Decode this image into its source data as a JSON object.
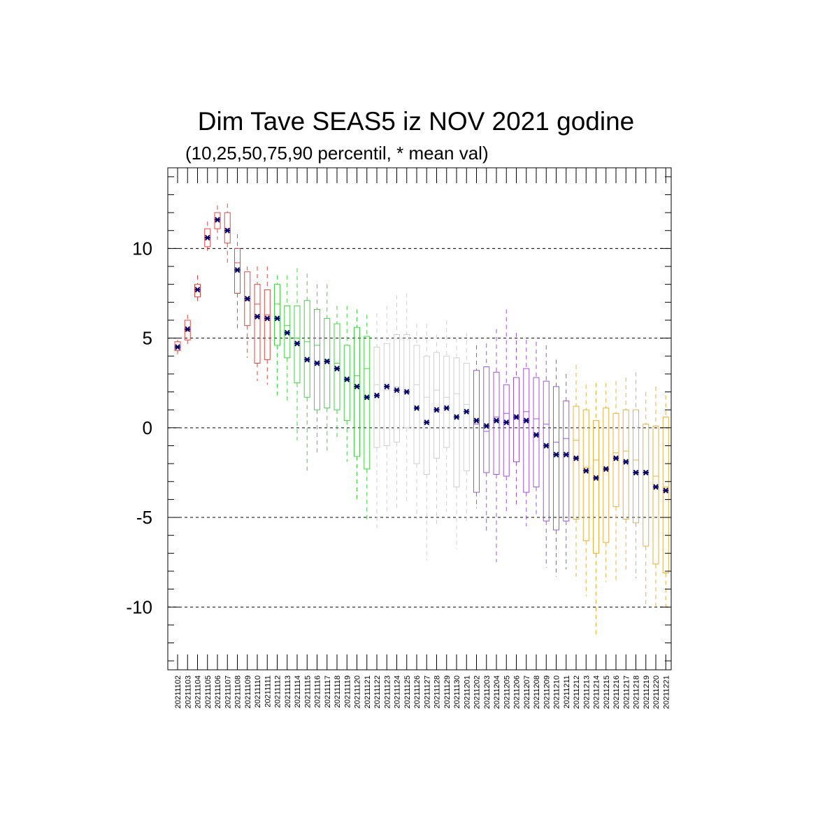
{
  "chart_data": {
    "type": "box",
    "title": "Dim Tave SEAS5 iz NOV 2021 godine",
    "subtitle": "(10,25,50,75,90 percentil, * mean val)",
    "xlabel": "",
    "ylabel": "",
    "ylim": [
      -13.5,
      14.5
    ],
    "yticks": [
      -10,
      -5,
      0,
      5,
      10
    ],
    "ytick_labels": [
      "-10",
      "-5",
      "0",
      "5",
      "10"
    ],
    "grid": "dashed horizontal lines at major ticks",
    "colors": {
      "november_early": "#e8453c",
      "november_mid": "#3fd63f",
      "november_late": "#cfcfcf",
      "december_early": "#a150e8",
      "december_late": "#f0ad3a",
      "mean_marker": "#000066"
    },
    "categories": [
      "20211102",
      "20211103",
      "20211104",
      "20211105",
      "20211106",
      "20211107",
      "20211108",
      "20211109",
      "20211110",
      "20211111",
      "20211112",
      "20211113",
      "20211114",
      "20211115",
      "20211116",
      "20211117",
      "20211118",
      "20211119",
      "20211120",
      "20211121",
      "20211122",
      "20211123",
      "20211124",
      "20211125",
      "20211126",
      "20211127",
      "20211128",
      "20211129",
      "20211130",
      "20211201",
      "20211202",
      "20211203",
      "20211204",
      "20211205",
      "20211206",
      "20211207",
      "20211208",
      "20211209",
      "20211210",
      "20211211",
      "20211212",
      "20211213",
      "20211214",
      "20211215",
      "20211216",
      "20211217",
      "20211218",
      "20211219",
      "20211220",
      "20211221"
    ],
    "boxes": [
      {
        "p10": 4.1,
        "p25": 4.3,
        "p50": 4.5,
        "p75": 4.8,
        "p90": 4.9,
        "mean": 4.5,
        "color": "#e8453c"
      },
      {
        "p10": 4.5,
        "p25": 4.9,
        "p50": 5.4,
        "p75": 6.0,
        "p90": 6.3,
        "mean": 5.5,
        "color": "#e8453c"
      },
      {
        "p10": 7.0,
        "p25": 7.3,
        "p50": 7.7,
        "p75": 8.0,
        "p90": 8.5,
        "mean": 7.7,
        "color": "#e8453c"
      },
      {
        "p10": 9.7,
        "p25": 10.1,
        "p50": 10.6,
        "p75": 11.1,
        "p90": 11.5,
        "mean": 10.6,
        "color": "#e8453c"
      },
      {
        "p10": 10.5,
        "p25": 11.1,
        "p50": 11.6,
        "p75": 12.0,
        "p90": 12.4,
        "mean": 11.6,
        "color": "#e8453c"
      },
      {
        "p10": 9.0,
        "p25": 10.3,
        "p50": 11.1,
        "p75": 12.0,
        "p90": 12.5,
        "mean": 11.0,
        "color": "#e8453c"
      },
      {
        "p10": 5.5,
        "p25": 7.5,
        "p50": 9.2,
        "p75": 10.0,
        "p90": 10.8,
        "mean": 8.8,
        "color": "#e8453c"
      },
      {
        "p10": 3.9,
        "p25": 5.7,
        "p50": 7.1,
        "p75": 8.7,
        "p90": 9.0,
        "mean": 7.2,
        "color": "#e8453c"
      },
      {
        "p10": 2.6,
        "p25": 3.6,
        "p50": 6.9,
        "p75": 8.0,
        "p90": 9.0,
        "mean": 6.2,
        "color": "#e8453c"
      },
      {
        "p10": 2.4,
        "p25": 3.8,
        "p50": 6.3,
        "p75": 7.7,
        "p90": 9.0,
        "mean": 6.1,
        "color": "#e8453c"
      },
      {
        "p10": 1.8,
        "p25": 4.6,
        "p50": 6.9,
        "p75": 8.0,
        "p90": 8.5,
        "mean": 6.1,
        "color": "#3fd63f"
      },
      {
        "p10": 1.5,
        "p25": 3.9,
        "p50": 5.7,
        "p75": 6.8,
        "p90": 8.5,
        "mean": 5.3,
        "color": "#3fd63f"
      },
      {
        "p10": -0.7,
        "p25": 2.5,
        "p50": 5.0,
        "p75": 6.8,
        "p90": 8.9,
        "mean": 4.7,
        "color": "#3fd63f"
      },
      {
        "p10": -2.4,
        "p25": 1.7,
        "p50": 4.8,
        "p75": 7.1,
        "p90": 8.6,
        "mean": 3.8,
        "color": "#3fd63f"
      },
      {
        "p10": -1.5,
        "p25": 1.0,
        "p50": 4.6,
        "p75": 6.6,
        "p90": 8.0,
        "mean": 3.6,
        "color": "#3fd63f"
      },
      {
        "p10": -1.4,
        "p25": 1.1,
        "p50": 3.8,
        "p75": 6.1,
        "p90": 8.0,
        "mean": 3.7,
        "color": "#3fd63f"
      },
      {
        "p10": -0.6,
        "p25": 1.0,
        "p50": 3.6,
        "p75": 5.8,
        "p90": 6.8,
        "mean": 3.3,
        "color": "#3fd63f"
      },
      {
        "p10": -1.9,
        "p25": 0.4,
        "p50": 2.7,
        "p75": 4.6,
        "p90": 6.8,
        "mean": 2.7,
        "color": "#3fd63f"
      },
      {
        "p10": -4.0,
        "p25": -1.6,
        "p50": 2.9,
        "p75": 5.6,
        "p90": 6.6,
        "mean": 2.3,
        "color": "#3fd63f"
      },
      {
        "p10": -5.1,
        "p25": -2.3,
        "p50": 3.3,
        "p75": 5.1,
        "p90": 6.3,
        "mean": 1.7,
        "color": "#3fd63f"
      },
      {
        "p10": -5.6,
        "p25": -1.1,
        "p50": 2.4,
        "p75": 4.5,
        "p90": 6.4,
        "mean": 1.8,
        "color": "#cfcfcf"
      },
      {
        "p10": -4.8,
        "p25": -1.0,
        "p50": 2.1,
        "p75": 4.7,
        "p90": 6.8,
        "mean": 2.3,
        "color": "#cfcfcf"
      },
      {
        "p10": -4.5,
        "p25": -0.8,
        "p50": 2.3,
        "p75": 5.2,
        "p90": 7.4,
        "mean": 2.1,
        "color": "#cfcfcf"
      },
      {
        "p10": -4.2,
        "p25": 0.0,
        "p50": 2.1,
        "p75": 5.2,
        "p90": 7.5,
        "mean": 2.0,
        "color": "#cfcfcf"
      },
      {
        "p10": -5.1,
        "p25": -2.0,
        "p50": 2.4,
        "p75": 4.6,
        "p90": 5.8,
        "mean": 1.1,
        "color": "#cfcfcf"
      },
      {
        "p10": -7.4,
        "p25": -2.6,
        "p50": 1.7,
        "p75": 4.0,
        "p90": 5.8,
        "mean": 0.3,
        "color": "#cfcfcf"
      },
      {
        "p10": -5.4,
        "p25": -1.7,
        "p50": 2.1,
        "p75": 4.2,
        "p90": 5.2,
        "mean": 1.0,
        "color": "#cfcfcf"
      },
      {
        "p10": -4.7,
        "p25": -1.1,
        "p50": 1.7,
        "p75": 4.0,
        "p90": 6.0,
        "mean": 1.1,
        "color": "#cfcfcf"
      },
      {
        "p10": -6.8,
        "p25": -3.3,
        "p50": 1.9,
        "p75": 3.9,
        "p90": 5.0,
        "mean": 0.6,
        "color": "#cfcfcf"
      },
      {
        "p10": -5.2,
        "p25": -2.4,
        "p50": 1.3,
        "p75": 3.6,
        "p90": 5.3,
        "mean": 0.9,
        "color": "#cfcfcf"
      },
      {
        "p10": -4.5,
        "p25": -3.6,
        "p50": 0.2,
        "p75": 3.2,
        "p90": 4.6,
        "mean": 0.4,
        "color": "#a150e8"
      },
      {
        "p10": -5.9,
        "p25": -2.5,
        "p50": -0.2,
        "p75": 3.4,
        "p90": 4.7,
        "mean": 0.1,
        "color": "#a150e8"
      },
      {
        "p10": -7.5,
        "p25": -2.6,
        "p50": 0.6,
        "p75": 3.1,
        "p90": 5.5,
        "mean": 0.4,
        "color": "#a150e8"
      },
      {
        "p10": -4.8,
        "p25": -2.7,
        "p50": 0.8,
        "p75": 2.4,
        "p90": 6.6,
        "mean": 0.3,
        "color": "#a150e8"
      },
      {
        "p10": -4.4,
        "p25": -1.9,
        "p50": 0.5,
        "p75": 2.8,
        "p90": 5.3,
        "mean": 0.6,
        "color": "#a150e8"
      },
      {
        "p10": -5.5,
        "p25": -3.6,
        "p50": 0.9,
        "p75": 3.3,
        "p90": 4.9,
        "mean": 0.4,
        "color": "#a150e8"
      },
      {
        "p10": -5.0,
        "p25": -3.3,
        "p50": 0.5,
        "p75": 2.8,
        "p90": 4.8,
        "mean": -0.4,
        "color": "#a150e8"
      },
      {
        "p10": -7.8,
        "p25": -5.2,
        "p50": 0.2,
        "p75": 2.6,
        "p90": 4.6,
        "mean": -1.0,
        "color": "#a150e8"
      },
      {
        "p10": -8.3,
        "p25": -5.7,
        "p50": -0.8,
        "p75": 2.3,
        "p90": 3.8,
        "mean": -1.5,
        "color": "#a150e8"
      },
      {
        "p10": -7.9,
        "p25": -5.2,
        "p50": -0.6,
        "p75": 1.5,
        "p90": 3.0,
        "mean": -1.5,
        "color": "#a150e8"
      },
      {
        "p10": -8.3,
        "p25": -5.1,
        "p50": -0.7,
        "p75": 1.2,
        "p90": 3.5,
        "mean": -1.7,
        "color": "#f0ad3a"
      },
      {
        "p10": -9.4,
        "p25": -6.3,
        "p50": -2.2,
        "p75": 1.0,
        "p90": 2.4,
        "mean": -2.4,
        "color": "#f0ad3a"
      },
      {
        "p10": -11.6,
        "p25": -7.0,
        "p50": -1.8,
        "p75": 0.4,
        "p90": 2.5,
        "mean": -2.8,
        "color": "#f0ad3a"
      },
      {
        "p10": -8.6,
        "p25": -6.4,
        "p50": -2.2,
        "p75": 1.1,
        "p90": 2.5,
        "mean": -2.3,
        "color": "#f0ad3a"
      },
      {
        "p10": -8.5,
        "p25": -4.4,
        "p50": -1.4,
        "p75": 0.8,
        "p90": 2.6,
        "mean": -1.7,
        "color": "#f0ad3a"
      },
      {
        "p10": -8.0,
        "p25": -5.1,
        "p50": -1.3,
        "p75": 1.0,
        "p90": 2.8,
        "mean": -1.9,
        "color": "#f0ad3a"
      },
      {
        "p10": -8.4,
        "p25": -5.3,
        "p50": -1.8,
        "p75": 1.0,
        "p90": 3.1,
        "mean": -2.5,
        "color": "#f0ad3a"
      },
      {
        "p10": -9.9,
        "p25": -6.6,
        "p50": -2.5,
        "p75": 0.2,
        "p90": 2.0,
        "mean": -2.5,
        "color": "#f0ad3a"
      },
      {
        "p10": -10.2,
        "p25": -7.6,
        "p50": -2.7,
        "p75": 0.1,
        "p90": 2.3,
        "mean": -3.3,
        "color": "#f0ad3a"
      },
      {
        "p10": -10.1,
        "p25": -8.1,
        "p50": -3.3,
        "p75": 0.6,
        "p90": 1.8,
        "mean": -3.5,
        "color": "#f0ad3a"
      }
    ]
  }
}
